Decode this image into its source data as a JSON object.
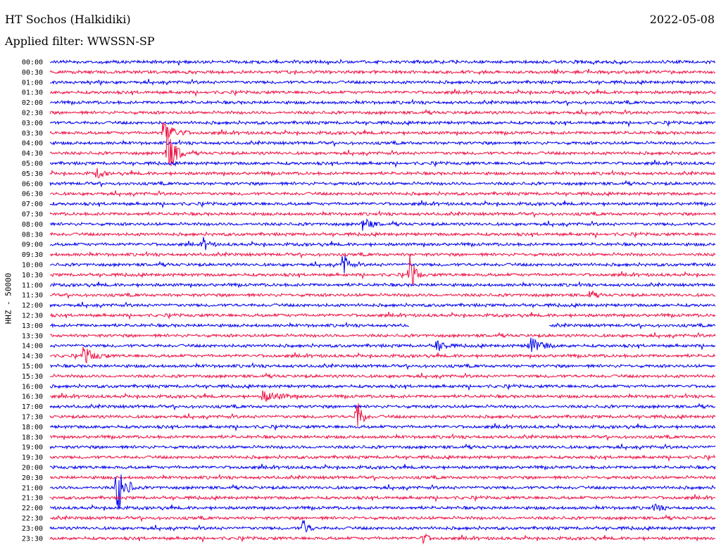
{
  "header": {
    "station": "HT Sochos (Halkidiki)",
    "date": "2022-05-08",
    "filter": "Applied filter: WWSSN-SP"
  },
  "chart_data": {
    "type": "line",
    "title": "HT Sochos (Halkidiki)",
    "ylabel": "HHZ - 50000",
    "colors": {
      "even": "#0000ee",
      "odd": "#ee1144"
    },
    "rows": [
      "00:00",
      "00:30",
      "01:00",
      "01:30",
      "02:00",
      "02:30",
      "03:00",
      "03:30",
      "04:00",
      "04:30",
      "05:00",
      "05:30",
      "06:00",
      "06:30",
      "07:00",
      "07:30",
      "08:00",
      "08:30",
      "09:00",
      "09:30",
      "10:00",
      "10:30",
      "11:00",
      "11:30",
      "12:00",
      "12:30",
      "13:00",
      "13:30",
      "14:00",
      "14:30",
      "15:00",
      "15:30",
      "16:00",
      "16:30",
      "17:00",
      "17:30",
      "18:00",
      "18:30",
      "19:00",
      "19:30",
      "20:00",
      "20:30",
      "21:00",
      "21:30",
      "22:00",
      "22:30",
      "23:00",
      "23:30"
    ],
    "events": [
      {
        "row": 7,
        "pos": 0.17,
        "amp": 18,
        "dur": 0.04
      },
      {
        "row": 9,
        "pos": 0.175,
        "amp": 40,
        "dur": 0.03
      },
      {
        "row": 11,
        "pos": 0.07,
        "amp": 8,
        "dur": 0.02
      },
      {
        "row": 16,
        "pos": 0.47,
        "amp": 10,
        "dur": 0.03
      },
      {
        "row": 18,
        "pos": 0.23,
        "amp": 10,
        "dur": 0.02
      },
      {
        "row": 20,
        "pos": 0.44,
        "amp": 18,
        "dur": 0.02
      },
      {
        "row": 21,
        "pos": 0.54,
        "amp": 30,
        "dur": 0.02
      },
      {
        "row": 23,
        "pos": 0.81,
        "amp": 6,
        "dur": 0.02
      },
      {
        "row": 28,
        "pos": 0.58,
        "amp": 10,
        "dur": 0.03
      },
      {
        "row": 28,
        "pos": 0.72,
        "amp": 14,
        "dur": 0.04
      },
      {
        "row": 29,
        "pos": 0.05,
        "amp": 12,
        "dur": 0.04
      },
      {
        "row": 33,
        "pos": 0.32,
        "amp": 8,
        "dur": 0.06
      },
      {
        "row": 35,
        "pos": 0.46,
        "amp": 30,
        "dur": 0.02
      },
      {
        "row": 42,
        "pos": 0.1,
        "amp": 44,
        "dur": 0.03
      },
      {
        "row": 44,
        "pos": 0.91,
        "amp": 6,
        "dur": 0.02
      },
      {
        "row": 46,
        "pos": 0.38,
        "amp": 14,
        "dur": 0.02
      },
      {
        "row": 47,
        "pos": 0.56,
        "amp": 8,
        "dur": 0.02
      }
    ],
    "gaps": [
      {
        "row": 26,
        "start": 0.54,
        "end": 0.75
      }
    ],
    "grid": false,
    "legend": "none"
  }
}
